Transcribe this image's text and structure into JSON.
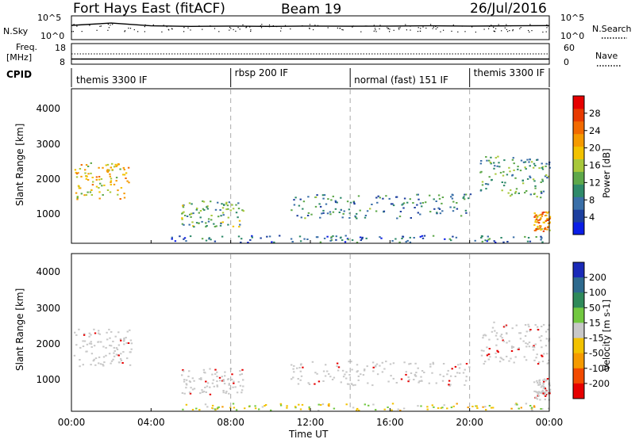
{
  "header": {
    "station": "Fort Hays East (fitACF)",
    "beam": "Beam 19",
    "date": "26/Jul/2016"
  },
  "noise_panel": {
    "left_label": "N.Sky",
    "right_label": "N.Search",
    "left_ticks": [
      "10^5",
      "10^0"
    ],
    "right_ticks": [
      "10^5",
      "10^0"
    ]
  },
  "freq_panel": {
    "left_label_1": "Freq.",
    "left_label_2": "[MHz]",
    "right_label": "Nave",
    "left_ticks": [
      "18",
      "8"
    ],
    "right_ticks": [
      "60",
      "0"
    ]
  },
  "cpid": {
    "label": "CPID",
    "modes": [
      {
        "text": "themis 3300 IF",
        "start_hour": 0
      },
      {
        "text": "rbsp 200 IF",
        "start_hour": 8
      },
      {
        "text": "normal (fast) 151 IF",
        "start_hour": 14
      },
      {
        "text": "themis 3300 IF",
        "start_hour": 20
      }
    ]
  },
  "x_axis": {
    "label": "Time UT",
    "ticks": [
      "00:00",
      "04:00",
      "08:00",
      "12:00",
      "16:00",
      "20:00",
      "00:00"
    ]
  },
  "power_panel": {
    "ylabel": "Slant Range [km]",
    "y_ticks": [
      "1000",
      "2000",
      "3000",
      "4000"
    ],
    "colorbar_label": "Power [dB]",
    "colorbar_ticks": [
      "4",
      "8",
      "12",
      "16",
      "20",
      "24",
      "28"
    ],
    "colors": [
      "#0a1de6",
      "#1d3f9e",
      "#3a6fa8",
      "#2f8a6a",
      "#5ea84a",
      "#a8c83a",
      "#f2c200",
      "#f59a00",
      "#f26a00",
      "#e83a00",
      "#e60000"
    ]
  },
  "velocity_panel": {
    "ylabel": "Slant Range [km]",
    "y_ticks": [
      "1000",
      "2000",
      "3000",
      "4000"
    ],
    "colorbar_label": "Velocity [m s-1]",
    "colorbar_ticks": [
      "200",
      "100",
      "50",
      "15",
      "-15",
      "-50",
      "-100",
      "-200"
    ],
    "colors": [
      "#1a2ab8",
      "#2e6a8e",
      "#2f8a5a",
      "#72c840",
      "#c8c8c8",
      "#f2c200",
      "#f59a00",
      "#f24a00",
      "#e60000"
    ]
  },
  "chart_data": [
    {
      "type": "line",
      "title": "Fort Hays East (fitACF)",
      "xlabel": "Time UT",
      "ylabel": "N.Sky",
      "xlim": [
        0,
        24
      ],
      "ylim": [
        1,
        100000
      ],
      "log_scale": true,
      "series": [
        {
          "name": "N.Sky",
          "x": [
            0,
            2,
            4,
            6,
            8,
            10,
            12,
            14,
            16,
            18,
            20,
            22,
            24
          ],
          "y": [
            1000,
            3000,
            800,
            600,
            700,
            600,
            700,
            650,
            700,
            800,
            700,
            800,
            900
          ]
        }
      ]
    },
    {
      "type": "line",
      "xlabel": "Time UT",
      "ylabel": "Freq. [MHz]",
      "xlim": [
        0,
        24
      ],
      "ylim": [
        8,
        18
      ],
      "series": [
        {
          "name": "Freq.",
          "x": [
            0,
            8,
            14,
            20,
            24
          ],
          "y": [
            10.5,
            10.5,
            10.5,
            10.5,
            10.5
          ]
        }
      ]
    },
    {
      "type": "heatmap",
      "variable": "Power [dB]",
      "xlabel": "Time UT",
      "ylabel": "Slant Range [km]",
      "xlim": [
        0,
        24
      ],
      "ylim": [
        180,
        4600
      ],
      "colorbar_range": [
        0,
        30
      ],
      "echo_regions": [
        {
          "t_start": 0.1,
          "t_end": 3.0,
          "r_min": 1450,
          "r_max": 2500,
          "power_db": 18
        },
        {
          "t_start": 5.5,
          "t_end": 8.6,
          "r_min": 650,
          "r_max": 1400,
          "power_db": 12
        },
        {
          "t_start": 5.0,
          "t_end": 24.0,
          "r_min": 200,
          "r_max": 400,
          "power_db": 6
        },
        {
          "t_start": 11.0,
          "t_end": 20.0,
          "r_min": 900,
          "r_max": 1600,
          "power_db": 8
        },
        {
          "t_start": 20.5,
          "t_end": 24.0,
          "r_min": 1500,
          "r_max": 2700,
          "power_db": 10
        },
        {
          "t_start": 23.2,
          "t_end": 24.0,
          "r_min": 500,
          "r_max": 1100,
          "power_db": 22
        }
      ]
    },
    {
      "type": "heatmap",
      "variable": "Velocity [m s-1]",
      "xlabel": "Time UT",
      "ylabel": "Slant Range [km]",
      "xlim": [
        0,
        24
      ],
      "ylim": [
        180,
        4600
      ],
      "colorbar_range": [
        -250,
        250
      ],
      "echo_regions": [
        {
          "t_start": 0.1,
          "t_end": 3.0,
          "r_min": 1450,
          "r_max": 2500,
          "velocity": 0
        },
        {
          "t_start": 5.5,
          "t_end": 8.6,
          "r_min": 650,
          "r_max": 1400,
          "velocity": 0
        },
        {
          "t_start": 5.0,
          "t_end": 24.0,
          "r_min": 200,
          "r_max": 400,
          "velocity": -30
        },
        {
          "t_start": 11.0,
          "t_end": 20.0,
          "r_min": 900,
          "r_max": 1600,
          "velocity": 0
        },
        {
          "t_start": 20.5,
          "t_end": 24.0,
          "r_min": 1500,
          "r_max": 2700,
          "velocity": 0
        },
        {
          "t_start": 23.2,
          "t_end": 24.0,
          "r_min": 500,
          "r_max": 1100,
          "velocity": 0
        }
      ]
    }
  ]
}
